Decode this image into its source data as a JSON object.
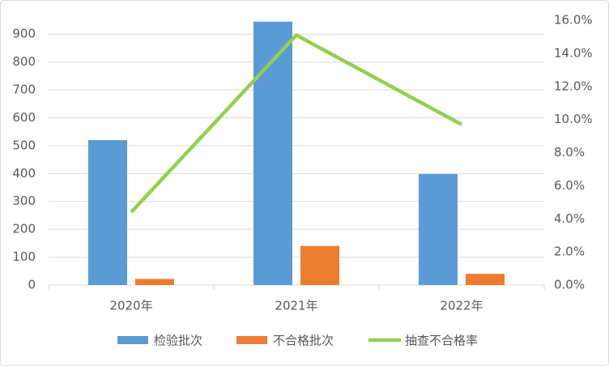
{
  "chart_data": {
    "type": "bar_line",
    "categories": [
      "2020年",
      "2021年",
      "2022年"
    ],
    "series": [
      {
        "name": "检验批次",
        "color": "#5b9bd5",
        "values": [
          520,
          945,
          398
        ],
        "type": "bar"
      },
      {
        "name": "不合格批次",
        "color": "#ed7d31",
        "values": [
          22,
          140,
          40
        ],
        "type": "bar"
      },
      {
        "name": "抽查不合格率",
        "color": "#92d050",
        "values": [
          4.4,
          15.1,
          9.7
        ],
        "type": "line",
        "axis": "y2"
      }
    ],
    "ylim": [
      0,
      950
    ],
    "yticks": [
      0,
      100,
      200,
      300,
      400,
      500,
      600,
      700,
      800,
      900
    ],
    "y2lim": [
      0,
      16
    ],
    "y2ticks": [
      {
        "value": 0,
        "label": "0.0%"
      },
      {
        "value": 2,
        "label": "2.0%"
      },
      {
        "value": 4,
        "label": "4.0%"
      },
      {
        "value": 6,
        "label": "6.0%"
      },
      {
        "value": 8,
        "label": "8.0%"
      },
      {
        "value": 10,
        "label": "10.0%"
      },
      {
        "value": 12,
        "label": "12.0%"
      },
      {
        "value": 14,
        "label": "14.0%"
      },
      {
        "value": 16,
        "label": "16.0%"
      }
    ],
    "grid": true,
    "legend": "bottom"
  }
}
